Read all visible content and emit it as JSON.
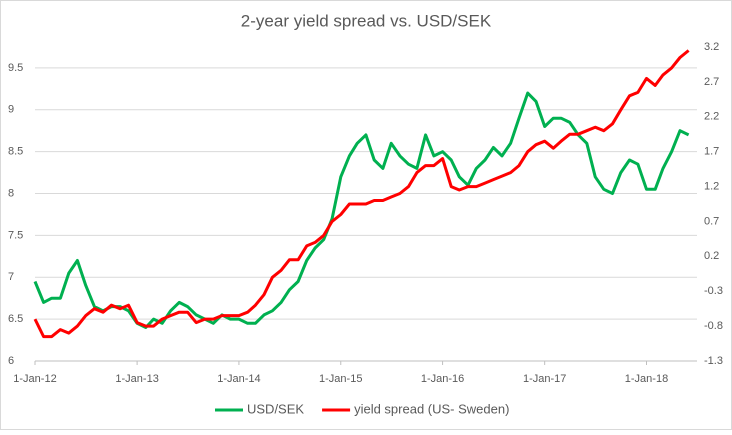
{
  "chart_data": {
    "type": "line",
    "title": "2-year yield spread vs. USD/SEK",
    "x": [
      "2012-01-01",
      "2012-02-01",
      "2012-03-01",
      "2012-04-01",
      "2012-05-01",
      "2012-06-01",
      "2012-07-01",
      "2012-08-01",
      "2012-09-01",
      "2012-10-01",
      "2012-11-01",
      "2012-12-01",
      "2013-01-01",
      "2013-02-01",
      "2013-03-01",
      "2013-04-01",
      "2013-05-01",
      "2013-06-01",
      "2013-07-01",
      "2013-08-01",
      "2013-09-01",
      "2013-10-01",
      "2013-11-01",
      "2013-12-01",
      "2014-01-01",
      "2014-02-01",
      "2014-03-01",
      "2014-04-01",
      "2014-05-01",
      "2014-06-01",
      "2014-07-01",
      "2014-08-01",
      "2014-09-01",
      "2014-10-01",
      "2014-11-01",
      "2014-12-01",
      "2015-01-01",
      "2015-02-01",
      "2015-03-01",
      "2015-04-01",
      "2015-05-01",
      "2015-06-01",
      "2015-07-01",
      "2015-08-01",
      "2015-09-01",
      "2015-10-01",
      "2015-11-01",
      "2015-12-01",
      "2016-01-01",
      "2016-02-01",
      "2016-03-01",
      "2016-04-01",
      "2016-05-01",
      "2016-06-01",
      "2016-07-01",
      "2016-08-01",
      "2016-09-01",
      "2016-10-01",
      "2016-11-01",
      "2016-12-01",
      "2017-01-01",
      "2017-02-01",
      "2017-03-01",
      "2017-04-01",
      "2017-05-01",
      "2017-06-01",
      "2017-07-01",
      "2017-08-01",
      "2017-09-01",
      "2017-10-01",
      "2017-11-01",
      "2017-12-01",
      "2018-01-01",
      "2018-02-01",
      "2018-03-01",
      "2018-04-01",
      "2018-05-01",
      "2018-06-01"
    ],
    "series": [
      {
        "name": "USD/SEK",
        "color": "#00b050",
        "values": [
          6.95,
          6.7,
          6.75,
          6.75,
          7.05,
          7.2,
          6.9,
          6.65,
          6.6,
          6.65,
          6.65,
          6.6,
          6.45,
          6.4,
          6.5,
          6.45,
          6.6,
          6.7,
          6.65,
          6.55,
          6.5,
          6.45,
          6.55,
          6.5,
          6.5,
          6.45,
          6.45,
          6.55,
          6.6,
          6.7,
          6.85,
          6.95,
          7.2,
          7.35,
          7.45,
          7.7,
          8.2,
          8.45,
          8.6,
          8.7,
          8.4,
          8.3,
          8.6,
          8.45,
          8.35,
          8.3,
          8.7,
          8.45,
          8.5,
          8.4,
          8.2,
          8.1,
          8.3,
          8.4,
          8.55,
          8.45,
          8.6,
          8.9,
          9.2,
          9.1,
          8.8,
          8.9,
          8.9,
          8.85,
          8.7,
          8.6,
          8.2,
          8.05,
          8.0,
          8.25,
          8.4,
          8.35,
          8.05,
          8.05,
          8.3,
          8.5,
          8.75,
          8.7
        ]
      },
      {
        "name": "yield spread (US- Sweden)",
        "color": "#ff0000",
        "axis": "y2",
        "values": [
          -0.7,
          -0.95,
          -0.95,
          -0.85,
          -0.9,
          -0.8,
          -0.65,
          -0.55,
          -0.6,
          -0.5,
          -0.55,
          -0.5,
          -0.75,
          -0.8,
          -0.8,
          -0.7,
          -0.65,
          -0.6,
          -0.6,
          -0.75,
          -0.7,
          -0.7,
          -0.65,
          -0.65,
          -0.65,
          -0.6,
          -0.5,
          -0.35,
          -0.1,
          0.0,
          0.15,
          0.15,
          0.35,
          0.4,
          0.5,
          0.7,
          0.8,
          0.95,
          0.95,
          0.95,
          1.0,
          1.0,
          1.05,
          1.1,
          1.2,
          1.4,
          1.5,
          1.5,
          1.6,
          1.2,
          1.15,
          1.2,
          1.2,
          1.25,
          1.3,
          1.35,
          1.4,
          1.5,
          1.7,
          1.8,
          1.85,
          1.75,
          1.85,
          1.95,
          1.95,
          2.0,
          2.05,
          2.0,
          2.1,
          2.3,
          2.5,
          2.55,
          2.75,
          2.65,
          2.8,
          2.9,
          3.05,
          3.15
        ]
      }
    ],
    "xlim": [
      "2012-01-01",
      "2018-07-01"
    ],
    "xticks": [
      {
        "value": "2012-01-01",
        "label": "1-Jan-12"
      },
      {
        "value": "2013-01-01",
        "label": "1-Jan-13"
      },
      {
        "value": "2014-01-01",
        "label": "1-Jan-14"
      },
      {
        "value": "2015-01-01",
        "label": "1-Jan-15"
      },
      {
        "value": "2016-01-01",
        "label": "1-Jan-16"
      },
      {
        "value": "2017-01-01",
        "label": "1-Jan-17"
      },
      {
        "value": "2018-01-01",
        "label": "1-Jan-18"
      }
    ],
    "ylim": [
      6,
      9.75
    ],
    "yticks": [
      6,
      6.5,
      7,
      7.5,
      8,
      8.5,
      9,
      9.5
    ],
    "y2lim": [
      -1.3,
      3.2
    ],
    "y2ticks": [
      -1.3,
      -0.8,
      -0.3,
      0.2,
      0.7,
      1.2,
      1.7,
      2.2,
      2.7,
      3.2
    ],
    "grid": true,
    "legend": "bottom"
  }
}
